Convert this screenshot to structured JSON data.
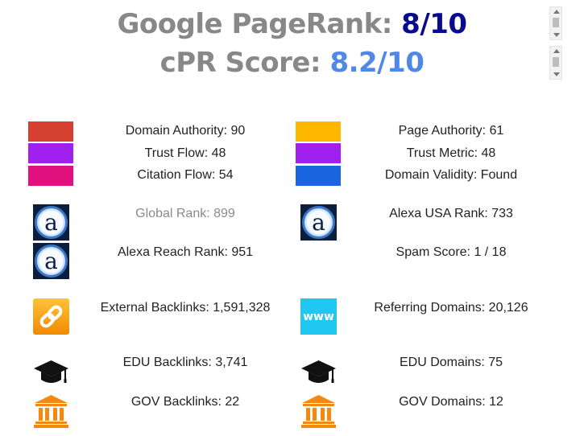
{
  "header": {
    "pagerank_label": "Google PageRank: ",
    "pagerank_value": "8/10",
    "cpr_label": "cPR Score: ",
    "cpr_value": "8.2/10"
  },
  "metrics": {
    "domain_authority": "Domain Authority: 90",
    "trust_flow": "Trust Flow: 48",
    "citation_flow": "Citation Flow: 54",
    "page_authority": "Page Authority: 61",
    "trust_metric": "Trust Metric: 48",
    "domain_validity": "Domain Validity: Found",
    "global_rank": "Global Rank: 899",
    "alexa_usa_rank": "Alexa USA Rank: 733",
    "alexa_reach_rank": "Alexa Reach Rank: 951",
    "spam_score": "Spam Score: 1 / 18",
    "external_backlinks": "External Backlinks: 1,591,328",
    "referring_domains": "Referring Domains: 20,126",
    "edu_backlinks": "EDU Backlinks: 3,741",
    "edu_domains": "EDU Domains: 75",
    "gov_backlinks": "GOV Backlinks: 22",
    "gov_domains": "GOV Domains: 12"
  },
  "colors": {
    "domain_authority": "#d64030",
    "trust_flow": "#a020f0",
    "citation_flow": "#e0107e",
    "page_authority": "#ffb800",
    "trust_metric": "#a020f0",
    "domain_validity": "#1a66e0"
  },
  "icons": {
    "alexa": "alexa-icon",
    "link": "link-icon",
    "www": "www-icon",
    "www_text": "www",
    "graduation": "graduation-cap-icon",
    "government": "government-building-icon"
  }
}
